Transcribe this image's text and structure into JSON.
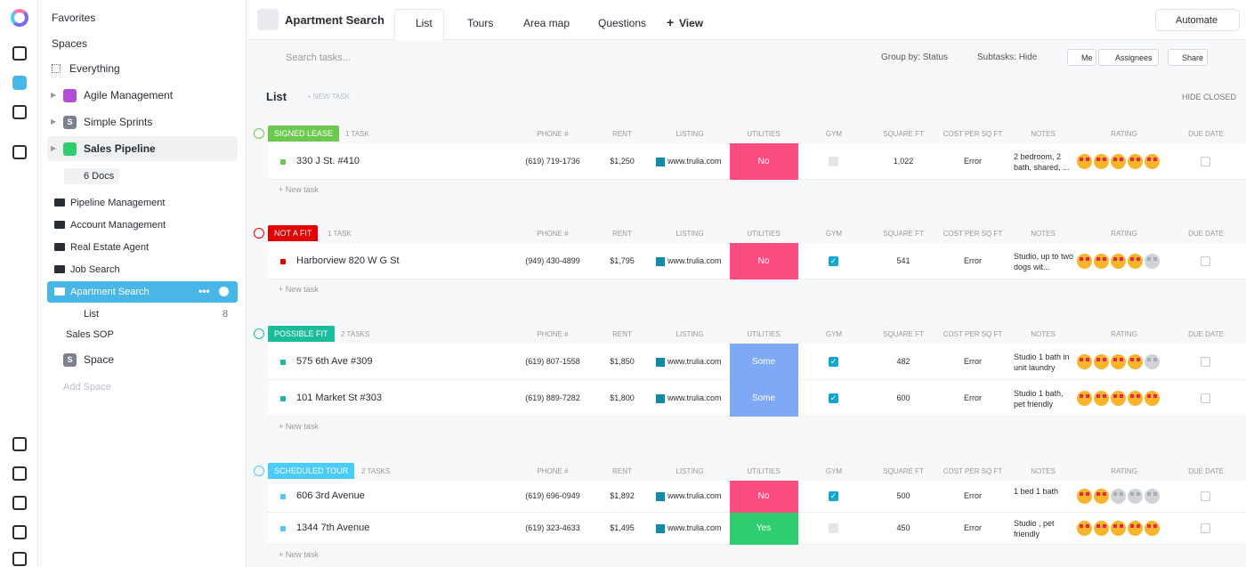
{
  "sidebar": {
    "favorites": "Favorites",
    "spaces": "Spaces",
    "everything": "Everything",
    "space_items": [
      {
        "name": "Agile Management",
        "color": "#b04fd6"
      },
      {
        "badge": "S",
        "name": "Simple Sprints",
        "color": "#7c828d"
      },
      {
        "name": "Sales Pipeline",
        "color": "#2ecd6f"
      }
    ],
    "docs": "6 Docs",
    "folders": [
      "Pipeline Management",
      "Account Management",
      "Real Estate Agent",
      "Job Search",
      "Apartment Search"
    ],
    "list_item": {
      "name": "List",
      "count": 8
    },
    "sop": "Sales SOP",
    "space": {
      "badge": "S",
      "name": "Space"
    },
    "add_space": "Add Space"
  },
  "header": {
    "title": "Apartment Search",
    "tabs": [
      "List",
      "Tours",
      "Area map",
      "Questions"
    ],
    "add_view": "View",
    "automate": "Automate"
  },
  "toolbar": {
    "search": "Search tasks...",
    "group_by": "Group by: Status",
    "subtasks": "Subtasks: Hide",
    "me": "Me",
    "assignees": "Assignees",
    "share": "Share"
  },
  "list": {
    "title": "List",
    "new_task": "+ NEW TASK",
    "hide_closed": "HIDE CLOSED",
    "columns": [
      "PHONE #",
      "RENT",
      "LISTING",
      "UTILITIES",
      "GYM",
      "SQUARE FT",
      "COST PER SQ FT",
      "NOTES",
      "RATING",
      "DUE DATE"
    ],
    "groups": [
      {
        "status": "SIGNED LEASE",
        "color": "#6bc950",
        "count": "1 TASK",
        "new_task": "+ New task",
        "tasks": [
          {
            "name": "330 J St. #410",
            "phone": "(619) 719-1736",
            "rent": "$1,250",
            "listing": "www.trulia.com",
            "utilities": "No",
            "utilities_color": "#fd4d80",
            "gym": false,
            "sqft": "1,022",
            "cost": "Error",
            "notes": "2 bedroom, 2 bath, shared, ...",
            "rating": 5
          }
        ]
      },
      {
        "status": "NOT A FIT",
        "color": "#e50000",
        "count": "1 TASK",
        "new_task": "+ New task",
        "tasks": [
          {
            "name": "Harborview 820 W G St",
            "phone": "(949) 430-4899",
            "rent": "$1,795",
            "listing": "www.trulia.com",
            "utilities": "No",
            "utilities_color": "#fd4d80",
            "gym": true,
            "sqft": "541",
            "cost": "Error",
            "notes": "Studio, up to two dogs wit...",
            "rating": 4
          }
        ]
      },
      {
        "status": "POSSIBLE FIT",
        "color": "#1bbc9c",
        "count": "2 TASKS",
        "new_task": "+ New task",
        "tasks": [
          {
            "name": "575 6th Ave #309",
            "phone": "(619) 807-1558",
            "rent": "$1,850",
            "listing": "www.trulia.com",
            "utilities": "Some",
            "utilities_color": "#7ea9f7",
            "gym": true,
            "sqft": "482",
            "cost": "Error",
            "notes": "Studio 1 bath in unit laundry",
            "rating": 4
          },
          {
            "name": "101 Market St #303",
            "phone": "(619) 889-7282",
            "rent": "$1,800",
            "listing": "www.trulia.com",
            "utilities": "Some",
            "utilities_color": "#7ea9f7",
            "gym": true,
            "sqft": "600",
            "cost": "Error",
            "notes": "Studio 1 bath, pet friendly",
            "rating": 5
          }
        ]
      },
      {
        "status": "SCHEDULED TOUR",
        "color": "#49ccf9",
        "count": "2 TASKS",
        "new_task": "+ New task",
        "tasks": [
          {
            "name": "606 3rd Avenue",
            "phone": "(619) 696-0949",
            "rent": "$1,892",
            "listing": "www.trulia.com",
            "utilities": "No",
            "utilities_color": "#fd4d80",
            "gym": true,
            "sqft": "500",
            "cost": "Error",
            "notes": "1 bed 1 bath",
            "rating": 2
          },
          {
            "name": "1344 7th Avenue",
            "phone": "(619) 323-4633",
            "rent": "$1,495",
            "listing": "www.trulia.com",
            "utilities": "Yes",
            "utilities_color": "#2ecd6f",
            "gym": false,
            "sqft": "450",
            "cost": "Error",
            "notes": "Studio , pet friendly",
            "rating": 5
          }
        ]
      }
    ]
  }
}
